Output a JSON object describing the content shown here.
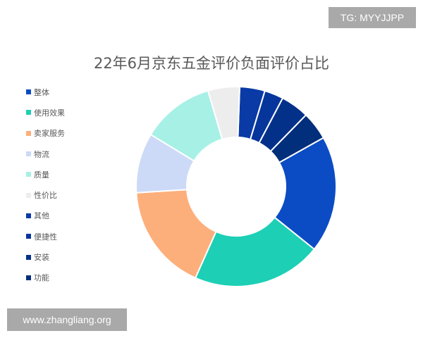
{
  "watermark_top": "TG: MYYJJPP",
  "watermark_bottom": "www.zhangliang.org",
  "chart_data": {
    "type": "pie",
    "variant": "donut",
    "title": "22年6月京东五金评价负面评价占比",
    "legend_position": "left",
    "categories": [
      "整体",
      "使用效果",
      "卖家服务",
      "物流",
      "质量",
      "性价比",
      "其他",
      "便捷性",
      "安装",
      "功能"
    ],
    "values": [
      18.5,
      20.5,
      17.0,
      9.5,
      11.5,
      5.0,
      4.0,
      3.0,
      4.5,
      4.5
    ],
    "colors": [
      "#0b4cc4",
      "#1ccfb5",
      "#fdaf7b",
      "#ccdaf7",
      "#a7f0e5",
      "#ededed",
      "#0a3aa6",
      "#06359c",
      "#03318a",
      "#022f7c"
    ]
  }
}
